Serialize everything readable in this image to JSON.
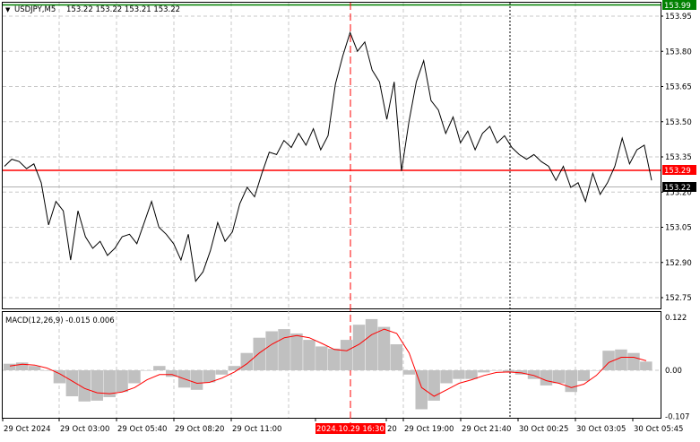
{
  "header": {
    "symbol_label": "USDJPY,M5",
    "ohlc": "153.22 153.22 153.21 153.22"
  },
  "price_axis": {
    "ticks": [
      "153.95",
      "153.80",
      "153.65",
      "153.50",
      "153.35",
      "153.20",
      "153.05",
      "152.90",
      "152.75"
    ],
    "top_line_value": "153.99",
    "level_value": "153.29",
    "last_value": "153.22"
  },
  "macd": {
    "label": "MACD(12,26,9) -0.015 0.006",
    "ticks": [
      "0.122",
      "0.00",
      "-0.107"
    ]
  },
  "time_axis": {
    "labels": [
      "29 Oct 2024",
      "29 Oct 03:00",
      "29 Oct 05:40",
      "29 Oct 08:20",
      "29 Oct 11:00",
      "2024.10.29 16:30",
      "20",
      "29 Oct 19:00",
      "29 Oct 21:40",
      "30 Oct 00:25",
      "30 Oct 03:05",
      "30 Oct 05:45"
    ]
  },
  "colors": {
    "price_line": "#000000",
    "level_line": "#ff0000",
    "top_line": "#008000",
    "cursor_line": "#ff0000",
    "histogram": "#c0c0c0",
    "signal_line": "#ff0000",
    "grid": "#c8c8c8",
    "highlight_label_bg": "#ff0000"
  },
  "chart_data": {
    "type": "line",
    "series": [
      {
        "values": [
          153.31,
          153.34,
          153.33,
          153.3,
          153.32,
          153.24,
          153.06,
          153.16,
          153.12,
          152.91,
          153.12,
          153.01,
          152.96,
          152.99,
          152.93,
          152.96,
          153.01,
          153.02,
          152.98,
          153.07,
          153.16,
          153.05,
          153.02,
          152.98,
          152.91,
          153.02,
          152.82,
          152.86,
          152.95,
          153.07,
          152.99,
          153.03,
          153.15,
          153.22,
          153.18,
          153.28,
          153.37,
          153.36,
          153.42,
          153.39,
          153.45,
          153.4,
          153.47,
          153.38,
          153.44,
          153.66,
          153.78,
          153.88,
          153.8,
          153.84,
          153.72,
          153.67,
          153.51,
          153.67,
          153.29,
          153.5,
          153.67,
          153.76,
          153.59,
          153.55,
          153.45,
          153.52,
          153.41,
          153.46,
          153.38,
          153.45,
          153.48,
          153.41,
          153.44,
          153.39,
          153.36,
          153.34,
          153.36,
          153.33,
          153.31,
          153.25,
          153.31,
          153.22,
          153.24,
          153.16,
          153.28,
          153.19,
          153.24,
          153.31,
          153.43,
          153.32,
          153.38,
          153.4,
          153.25
        ],
        "y_range_hint": "152.75-153.99"
      }
    ],
    "macd": {
      "histogram": [
        0.015,
        0.018,
        0.01,
        0.0,
        -0.03,
        -0.06,
        -0.072,
        -0.07,
        -0.062,
        -0.05,
        -0.03,
        0.0,
        0.01,
        -0.015,
        -0.04,
        -0.045,
        -0.028,
        -0.01,
        0.01,
        0.04,
        0.075,
        0.09,
        0.095,
        0.085,
        0.07,
        0.055,
        0.05,
        0.07,
        0.105,
        0.118,
        0.1,
        0.06,
        -0.01,
        -0.09,
        -0.07,
        -0.03,
        -0.02,
        -0.02,
        -0.005,
        0.0,
        -0.005,
        -0.01,
        -0.02,
        -0.035,
        -0.03,
        -0.05,
        -0.025,
        0.0,
        0.045,
        0.048,
        0.04,
        0.02
      ],
      "signal": [
        0.01,
        0.014,
        0.012,
        0.005,
        -0.008,
        -0.025,
        -0.042,
        -0.052,
        -0.054,
        -0.05,
        -0.04,
        -0.022,
        -0.01,
        -0.01,
        -0.02,
        -0.03,
        -0.028,
        -0.018,
        -0.004,
        0.015,
        0.04,
        0.06,
        0.075,
        0.08,
        0.075,
        0.062,
        0.048,
        0.045,
        0.06,
        0.082,
        0.095,
        0.085,
        0.04,
        -0.04,
        -0.06,
        -0.045,
        -0.03,
        -0.022,
        -0.012,
        -0.005,
        -0.004,
        -0.006,
        -0.012,
        -0.024,
        -0.03,
        -0.04,
        -0.032,
        -0.012,
        0.018,
        0.03,
        0.03,
        0.022
      ]
    },
    "xlabel": "",
    "ylabel": ""
  }
}
